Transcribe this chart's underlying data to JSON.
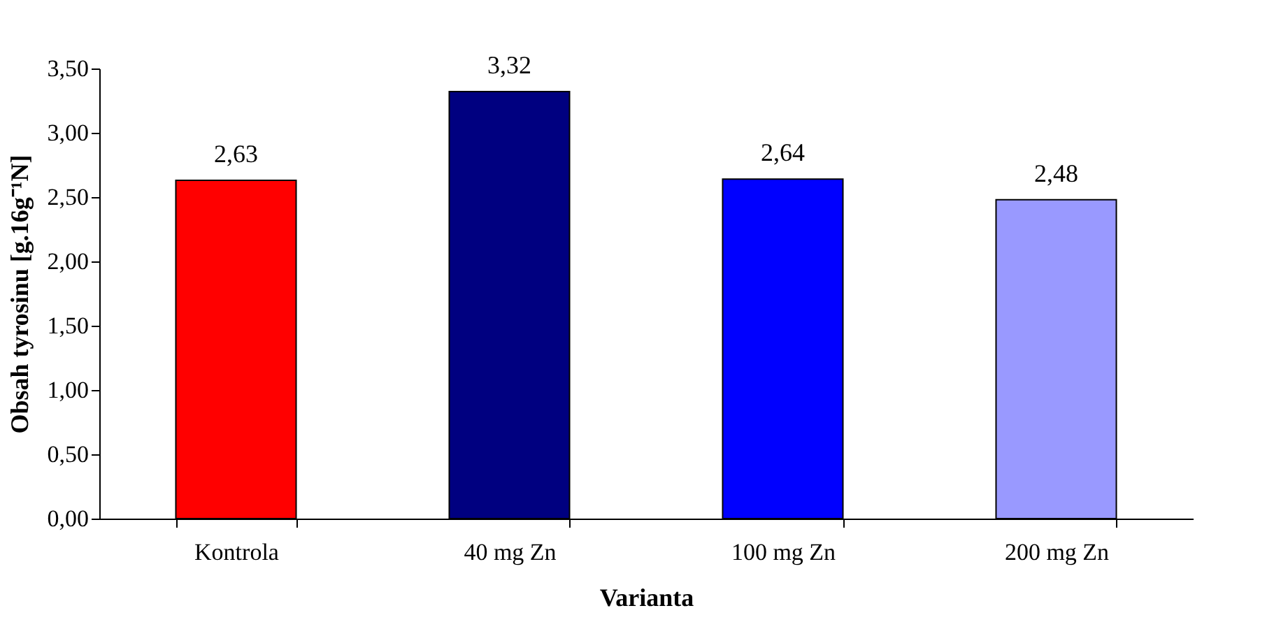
{
  "chart_data": {
    "type": "bar",
    "xlabel": "Varianta",
    "ylabel": "Obsah tyrosinu [g.16g⁻¹N]",
    "categories": [
      "Kontrola",
      "40 mg Zn",
      "100 mg Zn",
      "200 mg Zn"
    ],
    "values": [
      2.63,
      3.32,
      2.64,
      2.48
    ],
    "colors": [
      "#ff0000",
      "#000080",
      "#0000ff",
      "#9999ff"
    ],
    "value_labels": [
      "2,63",
      "3,32",
      "2,64",
      "2,48"
    ],
    "ylim": [
      0,
      3.5
    ],
    "yticks": [
      {
        "value": 0,
        "label": "0,00"
      },
      {
        "value": 0.5,
        "label": "0,50"
      },
      {
        "value": 1,
        "label": "1,00"
      },
      {
        "value": 1.5,
        "label": "1,50"
      },
      {
        "value": 2,
        "label": "2,00"
      },
      {
        "value": 2.5,
        "label": "2,50"
      },
      {
        "value": 3,
        "label": "3,00"
      },
      {
        "value": 3.5,
        "label": "3,50"
      }
    ],
    "grid": false,
    "legend": false
  }
}
